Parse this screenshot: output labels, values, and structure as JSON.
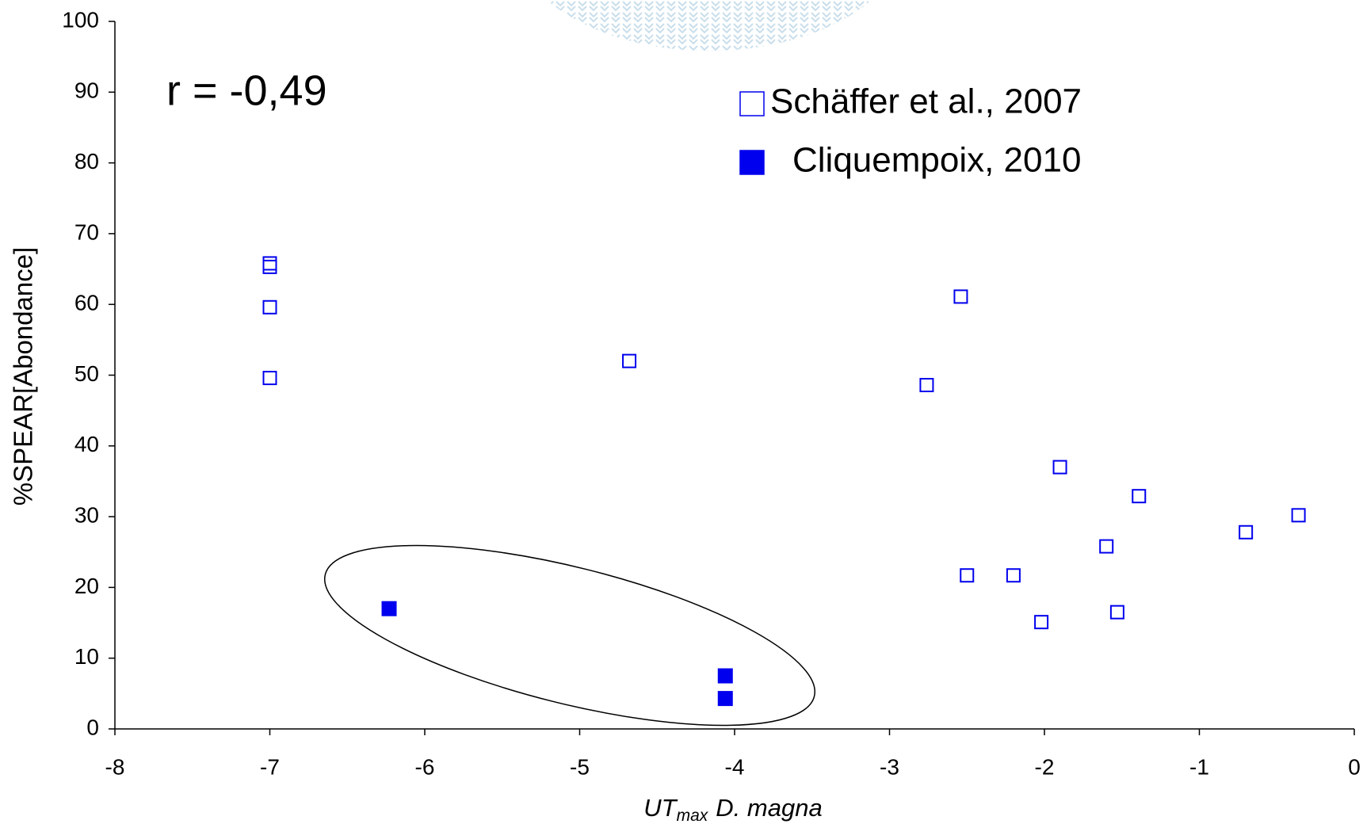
{
  "chart_data": {
    "type": "scatter",
    "annotation": "r = -0,49",
    "ylabel": "%SPEAR[Abondance]",
    "xlabel": "UT",
    "xlabel_sub": "max",
    "xlabel_rest": "D. magna",
    "xlim": [
      -8,
      0
    ],
    "xticks": [
      -8,
      -7,
      -6,
      -5,
      -4,
      -3,
      -2,
      -1,
      0
    ],
    "ylim": [
      0,
      100
    ],
    "yticks": [
      0,
      10,
      20,
      30,
      40,
      50,
      60,
      70,
      80,
      90,
      100
    ],
    "grid": false,
    "series": [
      {
        "name": "Schäffer et al., 2007",
        "color": "#0000ee",
        "filled": false,
        "x": [
          -7.0,
          -7.0,
          -7.0,
          -7.0,
          -4.68,
          -2.76,
          -2.54,
          -2.5,
          -2.2,
          -2.02,
          -1.9,
          -1.6,
          -1.53,
          -1.39,
          -0.7,
          -0.36
        ],
        "y": [
          65.8,
          65.3,
          59.6,
          49.6,
          52.0,
          48.6,
          61.1,
          21.7,
          21.7,
          15.1,
          37.0,
          25.8,
          16.5,
          32.9,
          27.8,
          30.2
        ]
      },
      {
        "name": "Cliquempoix, 2010",
        "color": "#0000ee",
        "filled": true,
        "x": [
          -6.23,
          -4.06,
          -4.06
        ],
        "y": [
          17.0,
          7.5,
          4.3
        ]
      }
    ]
  }
}
